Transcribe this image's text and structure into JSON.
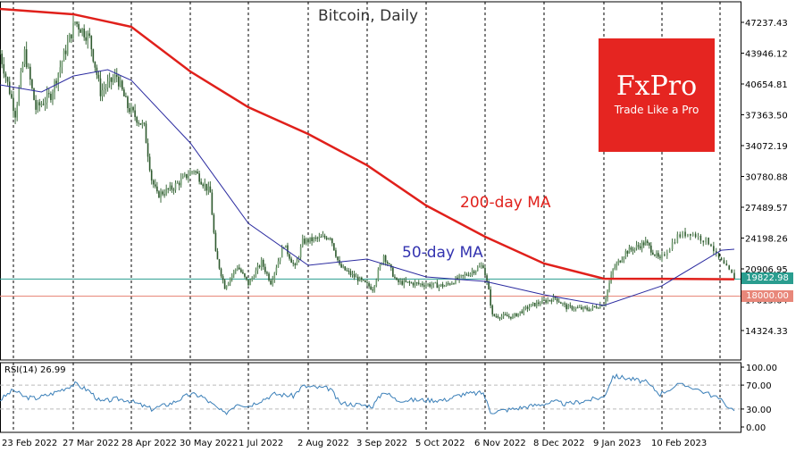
{
  "chart_data": {
    "type": "candlestick",
    "title": "Bitcoin, Daily",
    "y_ticks": [
      "47237.43",
      "43946.12",
      "40654.81",
      "37363.50",
      "34072.19",
      "30780.88",
      "27489.57",
      "24198.26",
      "20906.95",
      "17615.64",
      "14324.33"
    ],
    "ylim": [
      12500,
      49500
    ],
    "x_ticks": [
      "23 Feb 2022",
      "27 Mar 2022",
      "28 Apr 2022",
      "30 May 2022",
      "1 Jul 2022",
      "2 Aug 2022",
      "3 Sep 2022",
      "5 Oct 2022",
      "6 Nov 2022",
      "8 Dec 2022",
      "9 Jan 2023",
      "10 Feb 2023"
    ],
    "grid": "vertical dashed",
    "close": [
      [
        "2022-02-16",
        43900
      ],
      [
        "2022-02-24",
        37500
      ],
      [
        "2022-03-01",
        44000
      ],
      [
        "2022-03-07",
        38000
      ],
      [
        "2022-03-15",
        39500
      ],
      [
        "2022-03-28",
        47300
      ],
      [
        "2022-04-05",
        45500
      ],
      [
        "2022-04-11",
        39800
      ],
      [
        "2022-04-20",
        41500
      ],
      [
        "2022-04-26",
        38200
      ],
      [
        "2022-05-05",
        36000
      ],
      [
        "2022-05-09",
        30500
      ],
      [
        "2022-05-12",
        28800
      ],
      [
        "2022-05-20",
        29500
      ],
      [
        "2022-06-01",
        31500
      ],
      [
        "2022-06-10",
        29000
      ],
      [
        "2022-06-13",
        22500
      ],
      [
        "2022-06-18",
        19000
      ],
      [
        "2022-06-25",
        21200
      ],
      [
        "2022-07-01",
        19300
      ],
      [
        "2022-07-08",
        21600
      ],
      [
        "2022-07-13",
        19500
      ],
      [
        "2022-07-20",
        23500
      ],
      [
        "2022-07-26",
        21000
      ],
      [
        "2022-07-30",
        23800
      ],
      [
        "2022-08-14",
        24400
      ],
      [
        "2022-08-19",
        21200
      ],
      [
        "2022-08-26",
        20200
      ],
      [
        "2022-09-06",
        18800
      ],
      [
        "2022-09-12",
        22400
      ],
      [
        "2022-09-19",
        19500
      ],
      [
        "2022-10-01",
        19300
      ],
      [
        "2022-10-15",
        19100
      ],
      [
        "2022-10-25",
        20100
      ],
      [
        "2022-11-05",
        21300
      ],
      [
        "2022-11-08",
        18500
      ],
      [
        "2022-11-10",
        15900
      ],
      [
        "2022-11-21",
        15800
      ],
      [
        "2022-12-01",
        17000
      ],
      [
        "2022-12-14",
        17800
      ],
      [
        "2022-12-20",
        16800
      ],
      [
        "2023-01-01",
        16600
      ],
      [
        "2023-01-09",
        17200
      ],
      [
        "2023-01-14",
        20800
      ],
      [
        "2023-01-21",
        22700
      ],
      [
        "2023-02-01",
        23700
      ],
      [
        "2023-02-09",
        21800
      ],
      [
        "2023-02-16",
        24400
      ],
      [
        "2023-02-21",
        24800
      ],
      [
        "2023-03-01",
        23600
      ],
      [
        "2023-03-03",
        22300
      ],
      [
        "2023-03-09",
        20300
      ],
      [
        "2023-03-10",
        19822.98
      ]
    ],
    "series": [
      {
        "name": "200-day MA",
        "color": "#e0201b",
        "values": [
          [
            "2022-02-16",
            48670
          ],
          [
            "2022-03-27",
            48100
          ],
          [
            "2022-04-28",
            46760
          ],
          [
            "2022-05-30",
            41990
          ],
          [
            "2022-07-01",
            38170
          ],
          [
            "2022-08-02",
            35310
          ],
          [
            "2022-09-03",
            31970
          ],
          [
            "2022-10-05",
            27680
          ],
          [
            "2022-11-06",
            24340
          ],
          [
            "2022-12-08",
            21480
          ],
          [
            "2023-01-09",
            19860
          ],
          [
            "2023-02-10",
            19850
          ],
          [
            "2023-03-10",
            19800
          ]
        ]
      },
      {
        "name": "50-day MA",
        "color": "#2b2ba0",
        "values": [
          [
            "2022-02-16",
            40560
          ],
          [
            "2022-03-10",
            39800
          ],
          [
            "2022-03-27",
            41500
          ],
          [
            "2022-04-15",
            42180
          ],
          [
            "2022-04-28",
            41040
          ],
          [
            "2022-05-30",
            34360
          ],
          [
            "2022-07-01",
            25770
          ],
          [
            "2022-08-02",
            21290
          ],
          [
            "2022-09-03",
            21960
          ],
          [
            "2022-10-05",
            20050
          ],
          [
            "2022-11-06",
            19570
          ],
          [
            "2022-12-08",
            18140
          ],
          [
            "2023-01-09",
            17000
          ],
          [
            "2023-02-10",
            19100
          ],
          [
            "2023-03-05",
            22900
          ],
          [
            "2023-03-10",
            23000
          ]
        ]
      }
    ],
    "levels": [
      {
        "value": "19822.98",
        "color": "#2a9d8f"
      },
      {
        "value": "18000.00",
        "color": "#e8877a"
      }
    ],
    "rsi": {
      "label": "RSI(14) 26.99",
      "ticks": [
        "100.00",
        "70.00",
        "30.00",
        "0.00"
      ],
      "levels": [
        70,
        30
      ],
      "color": "#3a7fb8",
      "values": [
        [
          "2022-02-16",
          45
        ],
        [
          "2022-02-23",
          62
        ],
        [
          "2022-03-01",
          50
        ],
        [
          "2022-03-07",
          48
        ],
        [
          "2022-03-15",
          55
        ],
        [
          "2022-03-28",
          72
        ],
        [
          "2022-04-05",
          60
        ],
        [
          "2022-04-11",
          42
        ],
        [
          "2022-04-20",
          47
        ],
        [
          "2022-04-26",
          45
        ],
        [
          "2022-05-09",
          30
        ],
        [
          "2022-05-20",
          40
        ],
        [
          "2022-05-30",
          55
        ],
        [
          "2022-06-05",
          52
        ],
        [
          "2022-06-18",
          22
        ],
        [
          "2022-06-25",
          40
        ],
        [
          "2022-07-01",
          35
        ],
        [
          "2022-07-15",
          55
        ],
        [
          "2022-07-25",
          52
        ],
        [
          "2022-07-30",
          68
        ],
        [
          "2022-08-14",
          64
        ],
        [
          "2022-08-19",
          40
        ],
        [
          "2022-09-06",
          35
        ],
        [
          "2022-09-12",
          60
        ],
        [
          "2022-09-19",
          45
        ],
        [
          "2022-10-15",
          45
        ],
        [
          "2022-10-25",
          55
        ],
        [
          "2022-11-05",
          57
        ],
        [
          "2022-11-09",
          25
        ],
        [
          "2022-11-21",
          30
        ],
        [
          "2022-12-14",
          42
        ],
        [
          "2022-12-20",
          38
        ],
        [
          "2023-01-09",
          50
        ],
        [
          "2023-01-14",
          85
        ],
        [
          "2023-01-21",
          82
        ],
        [
          "2023-02-01",
          75
        ],
        [
          "2023-02-09",
          55
        ],
        [
          "2023-02-16",
          70
        ],
        [
          "2023-02-21",
          68
        ],
        [
          "2023-03-03",
          50
        ],
        [
          "2023-03-10",
          26.99
        ]
      ]
    },
    "annotations": {
      "ma200": "200-day MA",
      "ma50": "50-day MA"
    }
  },
  "logo": {
    "brand": "FxPro",
    "tagline": "Trade Like a Pro",
    "color": "#e52521"
  }
}
